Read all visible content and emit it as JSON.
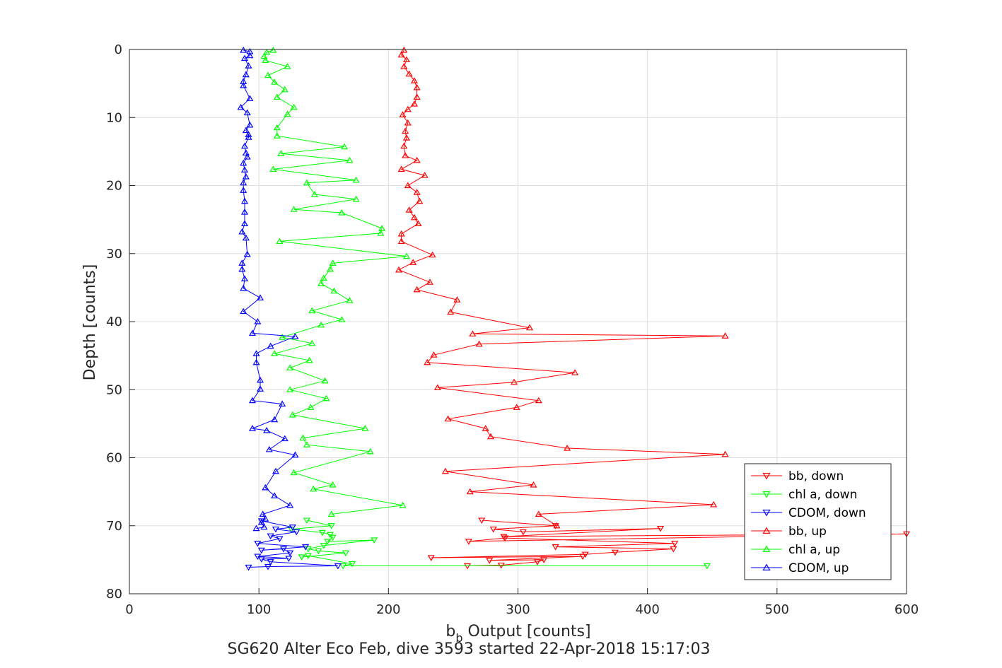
{
  "chart_data": {
    "type": "line",
    "title": "",
    "caption": "SG620 Alter Eco Feb, dive 3593 started 22-Apr-2018 15:17:03",
    "xlabel": "b",
    "xlabel_sub": "b",
    "xlabel_rest": " Output [counts]",
    "ylabel": "Depth [counts]",
    "xlim": [
      0,
      600
    ],
    "ylim": [
      0,
      80
    ],
    "y_reversed": true,
    "grid": true,
    "legend_position": "lower-right",
    "xticks": [
      0,
      100,
      200,
      300,
      400,
      500,
      600
    ],
    "yticks": [
      0,
      10,
      20,
      30,
      40,
      50,
      60,
      70,
      80
    ],
    "xtick_labels": [
      "0",
      "100",
      "200",
      "300",
      "400",
      "500",
      "600"
    ],
    "ytick_labels": [
      "0",
      "10",
      "20",
      "30",
      "40",
      "50",
      "60",
      "70",
      "80"
    ],
    "series": [
      {
        "name": "bb, down",
        "color": "#ff0000",
        "marker": "triangle-down",
        "x": [
          272,
          329,
          281,
          304,
          410,
          289,
          600,
          262,
          290,
          421,
          329,
          420,
          375,
          352,
          233,
          350,
          278,
          320,
          315,
          287,
          261
        ],
        "y": [
          69.2,
          70.0,
          70.5,
          70.9,
          70.4,
          71.6,
          71.2,
          72.3,
          71.8,
          72.6,
          73.1,
          73.4,
          73.9,
          74.2,
          74.7,
          74.5,
          75.1,
          75.0,
          75.3,
          75.8,
          75.9
        ]
      },
      {
        "name": "chl a, down",
        "color": "#00ff00",
        "marker": "triangle-down",
        "x": [
          137,
          156,
          125,
          149,
          155,
          157,
          153,
          189,
          150,
          138,
          146,
          167,
          133,
          138,
          172,
          165,
          446
        ],
        "y": [
          69.2,
          70.0,
          70.5,
          71.0,
          71.3,
          71.7,
          72.3,
          72.1,
          72.9,
          73.4,
          73.7,
          74.0,
          74.6,
          74.4,
          75.6,
          75.9,
          75.9
        ]
      },
      {
        "name": "CDOM, down",
        "color": "#0000ff",
        "marker": "triangle-down",
        "x": [
          102,
          126,
          113,
          129,
          109,
          116,
          99,
          136,
          102,
          119,
          124,
          99,
          123,
          102,
          109,
          161,
          107,
          92
        ],
        "y": [
          69.3,
          70.2,
          70.5,
          70.9,
          71.5,
          71.9,
          72.6,
          73.1,
          73.6,
          73.4,
          74.0,
          74.5,
          74.8,
          74.9,
          75.3,
          75.9,
          76.0,
          76.1
        ]
      },
      {
        "name": "bb, up",
        "color": "#ff0000",
        "marker": "triangle-up",
        "x": [
          212,
          210,
          214,
          212,
          216,
          220,
          222,
          222,
          220,
          215,
          211,
          215,
          213,
          214,
          212,
          213,
          222,
          210,
          228,
          215,
          222,
          224,
          216,
          220,
          223,
          210,
          210,
          234,
          219,
          208,
          232,
          222,
          253,
          248,
          309,
          265,
          460,
          270,
          235,
          230,
          344,
          297,
          238,
          316,
          299,
          246,
          275,
          279,
          338,
          460,
          244,
          312,
          263,
          451,
          316,
          330
        ],
        "y": [
          0.1,
          0.8,
          1.5,
          2.5,
          3.6,
          4.6,
          5.6,
          7.0,
          8.0,
          8.8,
          9.6,
          10.8,
          12.0,
          13.0,
          14.2,
          15.6,
          16.3,
          17.6,
          18.5,
          20.0,
          21.0,
          22.3,
          23.6,
          24.7,
          25.6,
          27.1,
          28.2,
          30.2,
          31.3,
          32.4,
          34.2,
          35.3,
          36.8,
          38.6,
          40.9,
          41.8,
          42.1,
          43.3,
          44.9,
          46.0,
          47.5,
          48.9,
          49.7,
          51.6,
          52.6,
          54.3,
          55.7,
          56.9,
          58.6,
          59.5,
          62.0,
          64.0,
          65.0,
          66.9,
          68.3,
          70.0
        ]
      },
      {
        "name": "chl a, up",
        "color": "#00ff00",
        "marker": "triangle-up",
        "x": [
          111,
          106,
          104,
          105,
          122,
          107,
          112,
          120,
          114,
          127,
          122,
          114,
          114,
          166,
          117,
          170,
          111,
          175,
          137,
          143,
          175,
          127,
          164,
          195,
          194,
          116,
          214,
          157,
          155,
          150,
          148,
          158,
          170,
          141,
          164,
          148,
          118,
          141,
          112,
          139,
          124,
          151,
          124,
          152,
          140,
          126,
          182,
          134,
          137,
          186,
          127,
          157,
          142,
          211,
          156
        ],
        "y": [
          0.1,
          0.4,
          1.0,
          1.6,
          2.5,
          3.8,
          4.8,
          5.9,
          7.0,
          8.5,
          9.5,
          11.5,
          12.7,
          14.3,
          15.3,
          16.3,
          17.6,
          19.2,
          19.6,
          21.3,
          22.0,
          23.5,
          24.0,
          26.3,
          27.0,
          28.2,
          30.4,
          31.4,
          32.3,
          33.6,
          34.4,
          35.5,
          36.9,
          38.4,
          39.7,
          40.5,
          42.3,
          43.2,
          44.7,
          45.7,
          46.8,
          48.7,
          50.0,
          51.3,
          52.6,
          53.7,
          55.7,
          57.1,
          58.1,
          59.1,
          62.2,
          64.0,
          64.6,
          67.0,
          68.3
        ]
      },
      {
        "name": "CDOM, up",
        "color": "#0000ff",
        "marker": "triangle-up",
        "x": [
          88,
          93,
          93,
          89,
          92,
          90,
          88,
          88,
          93,
          86,
          91,
          93,
          90,
          92,
          92,
          89,
          90,
          91,
          88,
          89,
          90,
          88,
          88,
          89,
          89,
          89,
          87,
          90,
          91,
          87,
          87,
          89,
          88,
          101,
          88,
          99,
          95,
          128,
          109,
          98,
          98,
          101,
          101,
          95,
          118,
          112,
          95,
          106,
          120,
          108,
          128,
          113,
          105,
          112,
          124,
          103,
          105,
          102,
          104,
          98
        ],
        "y": [
          0.1,
          0.3,
          0.9,
          1.3,
          2.4,
          3.7,
          4.7,
          5.3,
          7.2,
          8.5,
          9.3,
          11.1,
          11.9,
          12.5,
          12.9,
          14.2,
          15.2,
          15.8,
          16.7,
          17.7,
          18.7,
          19.6,
          20.7,
          22.3,
          23.9,
          25.6,
          26.8,
          27.7,
          30.1,
          31.4,
          32.3,
          33.7,
          35.1,
          36.5,
          38.5,
          40.0,
          41.7,
          42.2,
          43.6,
          44.7,
          46.0,
          48.6,
          49.9,
          51.6,
          52.1,
          54.4,
          55.7,
          56.0,
          57.2,
          58.8,
          59.6,
          62.0,
          64.4,
          65.6,
          67.0,
          68.3,
          69.0,
          69.5,
          70.2,
          70.4
        ]
      }
    ]
  }
}
